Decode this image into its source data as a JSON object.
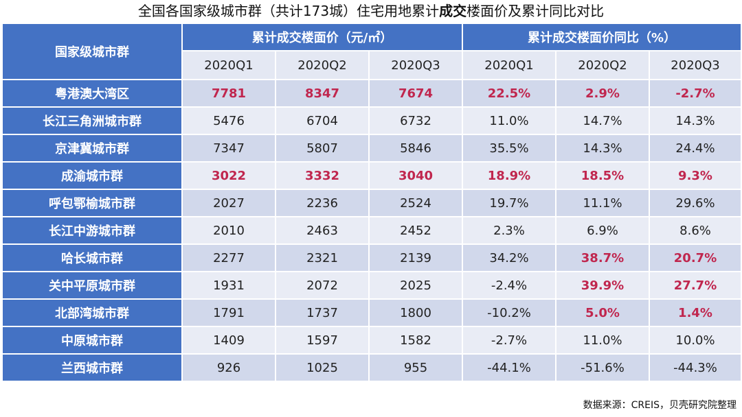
{
  "title": {
    "prefix": "全国各国家级城市群（共计173城）住宅用地累计",
    "bold": "成交",
    "suffix": "楼面价及累计同比对比"
  },
  "table": {
    "region_header": "国家级城市群",
    "group_price": "累计成交楼面价（元/㎡）",
    "group_yoy": "累计成交楼面价同比（%）",
    "quarters": [
      "2020Q1",
      "2020Q2",
      "2020Q3",
      "2020Q1",
      "2020Q2",
      "2020Q3"
    ],
    "rows": [
      {
        "name": "粤港澳大湾区",
        "cells": [
          "7781",
          "8347",
          "7674",
          "22.5%",
          "2.9%",
          "-2.7%"
        ],
        "hl": [
          1,
          1,
          1,
          1,
          1,
          1
        ]
      },
      {
        "name": "长江三角洲城市群",
        "cells": [
          "5476",
          "6704",
          "6732",
          "11.0%",
          "14.7%",
          "14.3%"
        ],
        "hl": [
          0,
          0,
          0,
          0,
          0,
          0
        ]
      },
      {
        "name": "京津冀城市群",
        "cells": [
          "7347",
          "5807",
          "5846",
          "35.5%",
          "14.3%",
          "24.4%"
        ],
        "hl": [
          0,
          0,
          0,
          0,
          0,
          0
        ]
      },
      {
        "name": "成渝城市群",
        "cells": [
          "3022",
          "3332",
          "3040",
          "18.9%",
          "18.5%",
          "9.3%"
        ],
        "hl": [
          1,
          1,
          1,
          1,
          1,
          1
        ]
      },
      {
        "name": "呼包鄂榆城市群",
        "cells": [
          "2027",
          "2236",
          "2524",
          "19.7%",
          "11.1%",
          "29.6%"
        ],
        "hl": [
          0,
          0,
          0,
          0,
          0,
          0
        ]
      },
      {
        "name": "长江中游城市群",
        "cells": [
          "2010",
          "2463",
          "2452",
          "2.3%",
          "6.9%",
          "8.6%"
        ],
        "hl": [
          0,
          0,
          0,
          0,
          0,
          0
        ]
      },
      {
        "name": "哈长城市群",
        "cells": [
          "2277",
          "2321",
          "2139",
          "34.2%",
          "38.7%",
          "20.7%"
        ],
        "hl": [
          0,
          0,
          0,
          0,
          1,
          1
        ]
      },
      {
        "name": "关中平原城市群",
        "cells": [
          "1931",
          "2072",
          "2025",
          "-2.4%",
          "39.9%",
          "27.7%"
        ],
        "hl": [
          0,
          0,
          0,
          0,
          1,
          1
        ]
      },
      {
        "name": "北部湾城市群",
        "cells": [
          "1791",
          "1737",
          "1800",
          "-10.2%",
          "5.0%",
          "1.4%"
        ],
        "hl": [
          0,
          0,
          0,
          0,
          1,
          1
        ]
      },
      {
        "name": "中原城市群",
        "cells": [
          "1409",
          "1597",
          "1582",
          "-2.7%",
          "11.0%",
          "10.0%"
        ],
        "hl": [
          0,
          0,
          0,
          0,
          0,
          0
        ]
      },
      {
        "name": "兰西城市群",
        "cells": [
          "926",
          "1025",
          "955",
          "-44.1%",
          "-51.6%",
          "-44.3%"
        ],
        "hl": [
          0,
          0,
          0,
          0,
          0,
          0
        ]
      }
    ]
  },
  "source": "数据来源：CREIS，贝壳研究院整理",
  "colors": {
    "header_blue": "#4472c4",
    "highlight_red": "#c0264e"
  }
}
